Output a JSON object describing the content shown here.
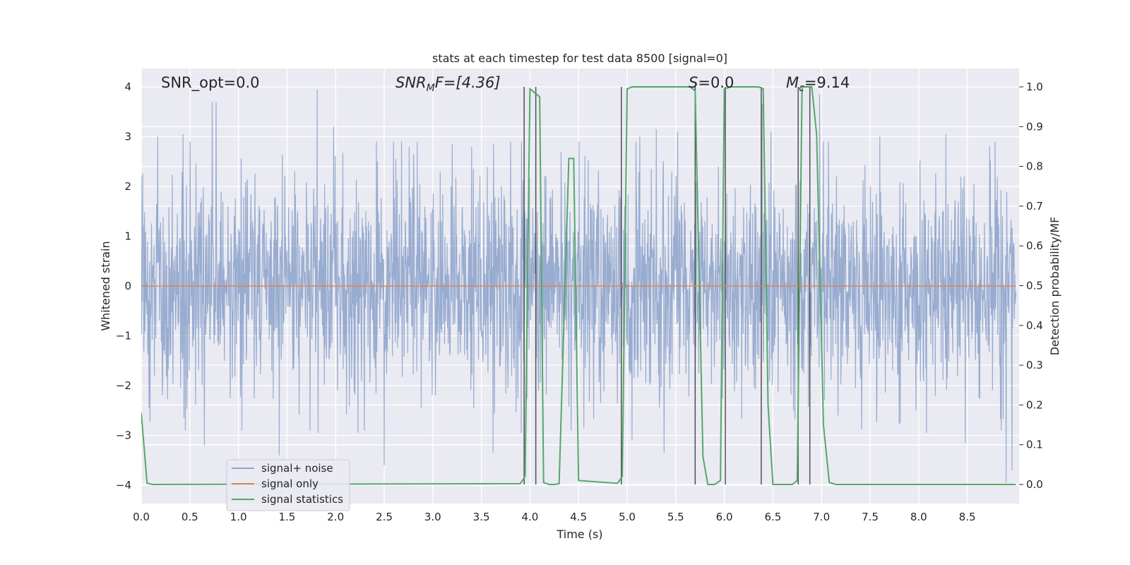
{
  "chart_data": {
    "type": "line",
    "title": "stats at each timestep for test data 8500 [signal=0]",
    "xlabel": "Time (s)",
    "ylabel": "Whitened strain",
    "ylabel_right": "Detection probability/MF",
    "xlim": [
      0.0,
      9.0
    ],
    "ylim": [
      -4.4,
      4.35
    ],
    "ylim_right": [
      -0.05,
      1.045
    ],
    "x_ticks": [
      "0.0",
      "0.5",
      "1.0",
      "1.5",
      "2.0",
      "2.5",
      "3.0",
      "3.5",
      "4.0",
      "4.5",
      "5.0",
      "5.5",
      "6.0",
      "6.5",
      "7.0",
      "7.5",
      "8.0",
      "8.5"
    ],
    "y_ticks": [
      "4",
      "3",
      "2",
      "1",
      "0",
      "−1",
      "−2",
      "−3",
      "−4"
    ],
    "y_right_ticks": [
      "1.0",
      "0.9",
      "0.8",
      "0.7",
      "0.6",
      "0.5",
      "0.4",
      "0.3",
      "0.2",
      "0.1",
      "0.0"
    ],
    "grid": true,
    "legend_position": "lower-left",
    "annotations": {
      "snr_opt": "SNR_opt=0.0",
      "snr_mf_main": "SNR",
      "snr_mf_sub": "M",
      "snr_mf_tail": "F=[4.36]",
      "s_main": "S",
      "s_tail": "=0.0",
      "mc_main": "M",
      "mc_sub": "c",
      "mc_tail": "=9.14"
    },
    "series": [
      {
        "name": "signal+ noise",
        "axis": "left",
        "color": "#8fa5cc",
        "description_range": [
          -3.6,
          4.0
        ],
        "spikes": [
          [
            0.17,
            3.0
          ],
          [
            0.43,
            3.05
          ],
          [
            0.73,
            3.7
          ],
          [
            0.77,
            3.7
          ],
          [
            1.81,
            3.95
          ],
          [
            1.98,
            3.2
          ],
          [
            2.43,
            2.5
          ],
          [
            2.62,
            2.55
          ],
          [
            2.84,
            2.9
          ],
          [
            3.2,
            2.85
          ],
          [
            3.4,
            2.8
          ],
          [
            3.62,
            3.3
          ],
          [
            4.32,
            2.7
          ],
          [
            5.13,
            3.0
          ],
          [
            5.3,
            3.15
          ],
          [
            5.52,
            3.1
          ],
          [
            6.39,
            3.65
          ],
          [
            6.48,
            3.1
          ],
          [
            6.98,
            3.85
          ],
          [
            7.6,
            3.0
          ],
          [
            8.28,
            3.05
          ],
          [
            0.08,
            -2.45
          ],
          [
            0.44,
            -2.65
          ],
          [
            0.65,
            -3.2
          ],
          [
            1.42,
            -3.4
          ],
          [
            1.82,
            -2.95
          ],
          [
            2.02,
            -2.1
          ],
          [
            2.23,
            -2.95
          ],
          [
            2.5,
            -3.6
          ],
          [
            3.62,
            -3.35
          ],
          [
            3.91,
            -2.95
          ],
          [
            5.05,
            -3.1
          ],
          [
            5.38,
            -3.35
          ],
          [
            5.7,
            -2.65
          ],
          [
            7.17,
            -2.6
          ],
          [
            8.08,
            -2.95
          ],
          [
            8.48,
            -3.15
          ],
          [
            8.9,
            -3.95
          ],
          [
            8.96,
            -3.7
          ]
        ]
      },
      {
        "name": "signal only",
        "axis": "left",
        "color": "#dd8452",
        "x": [
          0.0,
          9.0
        ],
        "y": [
          0.0,
          0.0
        ]
      },
      {
        "name": "signal statistics",
        "axis": "right",
        "color": "#55a868",
        "x": [
          0.0,
          0.06,
          0.12,
          3.9,
          3.95,
          4.0,
          4.05,
          4.1,
          4.14,
          4.2,
          4.25,
          4.3,
          4.4,
          4.45,
          4.5,
          4.9,
          4.95,
          5.0,
          5.05,
          5.65,
          5.7,
          5.78,
          5.83,
          5.9,
          5.96,
          6.0,
          6.06,
          6.35,
          6.4,
          6.45,
          6.5,
          6.7,
          6.75,
          6.8,
          6.82,
          6.9,
          6.95,
          7.02,
          7.08,
          7.15,
          7.2,
          9.0
        ],
        "y": [
          0.18,
          0.003,
          0.0,
          0.002,
          0.02,
          0.995,
          0.985,
          0.975,
          0.005,
          0.0,
          0.0,
          0.002,
          0.82,
          0.82,
          0.01,
          0.003,
          0.02,
          0.995,
          1.0,
          1.0,
          0.99,
          0.07,
          0.0,
          0.0,
          0.01,
          0.995,
          1.0,
          1.0,
          0.995,
          0.2,
          0.0,
          0.0,
          0.01,
          1.0,
          1.0,
          1.0,
          0.88,
          0.15,
          0.005,
          0.0,
          0.0,
          0.0
        ]
      }
    ],
    "vertical_lines": [
      3.94,
      4.06,
      4.94,
      5.7,
      6.01,
      6.38,
      6.76,
      6.88
    ]
  }
}
